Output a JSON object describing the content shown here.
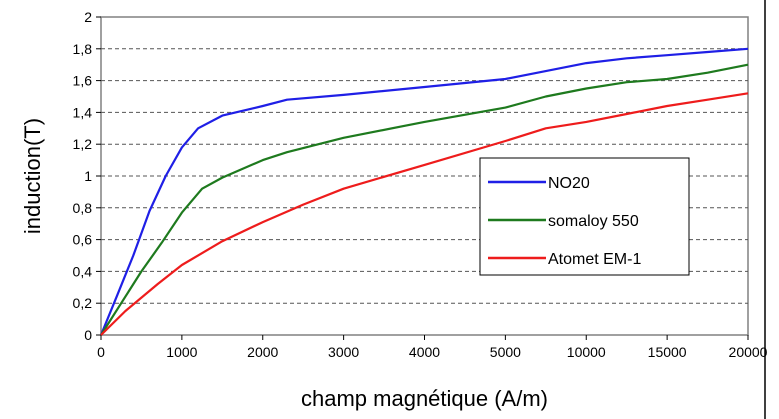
{
  "chart_data": {
    "type": "line",
    "title": "",
    "xlabel": "champ magnétique (A/m)",
    "ylabel": "induction(T)",
    "x_tick_labels": [
      "0",
      "1000",
      "2000",
      "3000",
      "4000",
      "5000",
      "10000",
      "15000",
      "20000"
    ],
    "y_tick_labels": [
      "0",
      "0,2",
      "0,4",
      "0,6",
      "0,8",
      "1",
      "1,2",
      "1,4",
      "1,6",
      "1,8",
      "2"
    ],
    "ylim": [
      0,
      2
    ],
    "grid": "horizontal dashed",
    "legend_position": "center-right",
    "series": [
      {
        "name": "NO20",
        "color": "#1f1fe6",
        "points": [
          [
            0,
            0
          ],
          [
            200,
            0.25
          ],
          [
            400,
            0.5
          ],
          [
            600,
            0.78
          ],
          [
            800,
            1.0
          ],
          [
            1000,
            1.18
          ],
          [
            1200,
            1.3
          ],
          [
            1500,
            1.38
          ],
          [
            2000,
            1.44
          ],
          [
            2300,
            1.48
          ],
          [
            3000,
            1.51
          ],
          [
            4000,
            1.56
          ],
          [
            5000,
            1.61
          ],
          [
            7500,
            1.66
          ],
          [
            10000,
            1.71
          ],
          [
            12500,
            1.74
          ],
          [
            15000,
            1.76
          ],
          [
            17500,
            1.78
          ],
          [
            20000,
            1.8
          ]
        ]
      },
      {
        "name": "somaloy 550",
        "color": "#1e7a1e",
        "points": [
          [
            0,
            0
          ],
          [
            250,
            0.2
          ],
          [
            500,
            0.4
          ],
          [
            750,
            0.58
          ],
          [
            1000,
            0.77
          ],
          [
            1250,
            0.92
          ],
          [
            1500,
            0.99
          ],
          [
            2000,
            1.1
          ],
          [
            2300,
            1.15
          ],
          [
            3000,
            1.24
          ],
          [
            4000,
            1.34
          ],
          [
            5000,
            1.43
          ],
          [
            7500,
            1.5
          ],
          [
            10000,
            1.55
          ],
          [
            12500,
            1.59
          ],
          [
            15000,
            1.61
          ],
          [
            17500,
            1.65
          ],
          [
            20000,
            1.7
          ]
        ]
      },
      {
        "name": "Atomet EM-1",
        "color": "#ee1c1c",
        "points": [
          [
            0,
            0
          ],
          [
            300,
            0.15
          ],
          [
            700,
            0.32
          ],
          [
            1000,
            0.44
          ],
          [
            1500,
            0.59
          ],
          [
            2000,
            0.71
          ],
          [
            2500,
            0.82
          ],
          [
            3000,
            0.92
          ],
          [
            4000,
            1.07
          ],
          [
            5000,
            1.22
          ],
          [
            7500,
            1.3
          ],
          [
            10000,
            1.34
          ],
          [
            12500,
            1.39
          ],
          [
            15000,
            1.44
          ],
          [
            17500,
            1.48
          ],
          [
            20000,
            1.52
          ]
        ]
      }
    ]
  }
}
